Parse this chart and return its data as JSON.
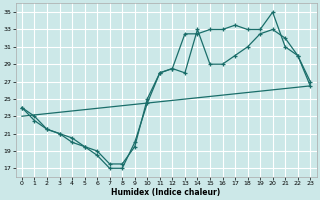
{
  "xlabel": "Humidex (Indice chaleur)",
  "bg_color": "#cce8e8",
  "grid_color": "#ffffff",
  "line_color": "#1a6e6a",
  "xlim": [
    -0.5,
    23.5
  ],
  "ylim": [
    16,
    36
  ],
  "xticks": [
    0,
    1,
    2,
    3,
    4,
    5,
    6,
    7,
    8,
    9,
    10,
    11,
    12,
    13,
    14,
    15,
    16,
    17,
    18,
    19,
    20,
    21,
    22,
    23
  ],
  "yticks": [
    17,
    19,
    21,
    23,
    25,
    27,
    29,
    31,
    33,
    35
  ],
  "line1_x": [
    0,
    1,
    2,
    3,
    4,
    5,
    6,
    7,
    8,
    9,
    10,
    11,
    12,
    13,
    14,
    15,
    16,
    17,
    18,
    19,
    20,
    21,
    22,
    23
  ],
  "line1_y": [
    24,
    23,
    21.5,
    21,
    20.5,
    19.5,
    19,
    17.5,
    17.5,
    19.5,
    25,
    28,
    28.5,
    32.5,
    32.5,
    33,
    33,
    33.5,
    33,
    33,
    35,
    31,
    30,
    26.5
  ],
  "line2_x": [
    0,
    1,
    2,
    3,
    4,
    5,
    6,
    7,
    8,
    9,
    10,
    11,
    12,
    13,
    14,
    15,
    16,
    17,
    18,
    19,
    20,
    21,
    22,
    23
  ],
  "line2_y": [
    24,
    22.5,
    21.5,
    21,
    20,
    19.5,
    18.5,
    17,
    17,
    20,
    24.5,
    28,
    28.5,
    28,
    33,
    29,
    29,
    30,
    31,
    32.5,
    33,
    32,
    30,
    27
  ],
  "line3_x": [
    0,
    23
  ],
  "line3_y": [
    23,
    26.5
  ]
}
